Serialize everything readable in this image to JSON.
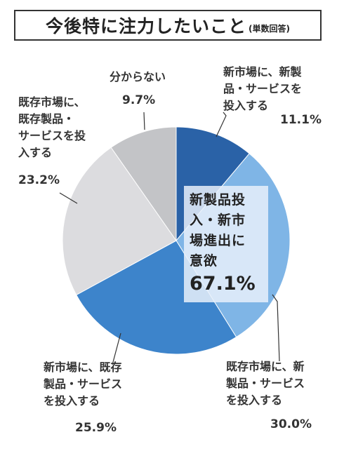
{
  "title": "今後特に注力したいこと",
  "subtitle": "(単数回答)",
  "chart_data": {
    "type": "pie",
    "slices": [
      {
        "label": [
          "新市場に、新製",
          "品・サービスを",
          "投入する"
        ],
        "value": 11.1,
        "value_label": "11.1%",
        "color": "#2a62a7"
      },
      {
        "label": [
          "既存市場に、新",
          "製品・サービス",
          "を投入する"
        ],
        "value": 30.0,
        "value_label": "30.0%",
        "color": "#7fb5e6"
      },
      {
        "label": [
          "新市場に、既存",
          "製品・サービス",
          "を投入する"
        ],
        "value": 25.9,
        "value_label": "25.9%",
        "color": "#3d84cb"
      },
      {
        "label": [
          "既存市場に、",
          "既存製品・",
          "サービスを投",
          "入する"
        ],
        "value": 23.2,
        "value_label": "23.2%",
        "color": "#dcdcdf"
      },
      {
        "label": [
          "分からない"
        ],
        "value": 9.7,
        "value_label": "9.7%",
        "color": "#c3c4c7"
      }
    ],
    "callout": {
      "lines": [
        "新製品投",
        "入・新市",
        "場進出に",
        "意欲"
      ],
      "value_label": "67.1%"
    }
  }
}
